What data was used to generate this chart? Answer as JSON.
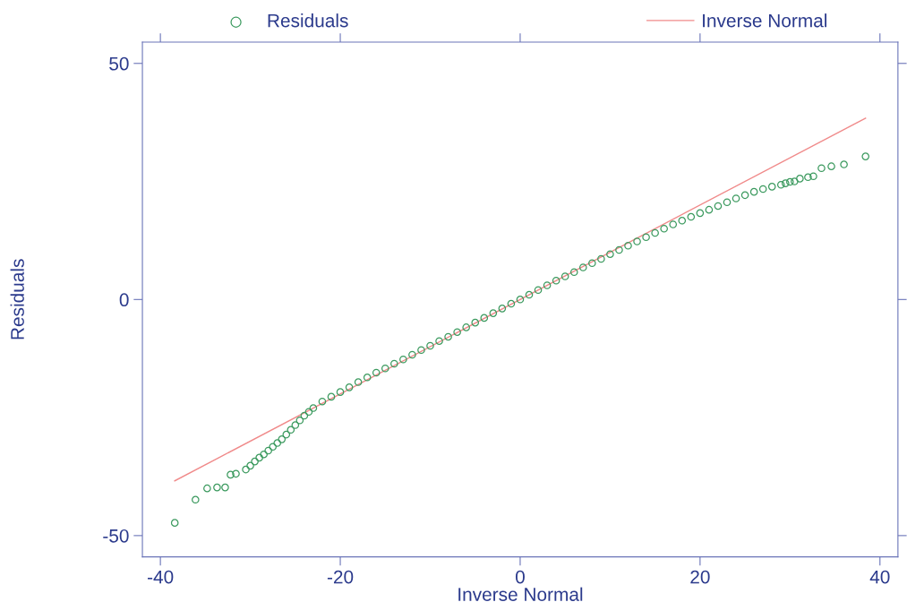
{
  "chart_data": {
    "type": "scatter",
    "xlabel": "Inverse Normal",
    "ylabel": "Residuals",
    "xlim": [
      -42,
      42
    ],
    "ylim": [
      -54.5,
      54.5
    ],
    "xticks": [
      -40,
      -20,
      0,
      20,
      40
    ],
    "yticks": [
      -50,
      0,
      50
    ],
    "grid": false,
    "legend": "top",
    "marker": "circle",
    "series": [
      {
        "name": "Residuals",
        "color": "#3c9a5f",
        "x": [
          -38.4,
          -36.1,
          -34.8,
          -33.7,
          -32.8,
          -32.2,
          -31.6,
          -30.5,
          -30,
          -29.5,
          -29,
          -28.5,
          -28,
          -27.5,
          -27,
          -26.5,
          -26,
          -25.5,
          -25,
          -24.5,
          -24,
          -23.5,
          -23,
          -22,
          -21,
          -20,
          -19,
          -18,
          -17,
          -16,
          -15,
          -14,
          -13,
          -12,
          -11,
          -10,
          -9,
          -8,
          -7,
          -6,
          -5,
          -4,
          -3,
          -2,
          -1,
          0,
          1,
          2,
          3,
          4,
          5,
          6,
          7,
          8,
          9,
          10,
          11,
          12,
          13,
          14,
          15,
          16,
          17,
          18,
          19,
          20,
          21,
          22,
          23,
          24,
          25,
          26,
          27,
          28,
          29,
          29.5,
          30,
          30.5,
          31.1,
          32,
          32.6,
          33.5,
          34.6,
          36,
          38.4
        ],
        "values": [
          -47.3,
          -42.4,
          -40,
          -39.8,
          -39.8,
          -37.1,
          -36.9,
          -36,
          -35.2,
          -34.3,
          -33.5,
          -32.8,
          -32,
          -31.2,
          -30.4,
          -29.6,
          -28.6,
          -27.6,
          -26.6,
          -25.6,
          -24.6,
          -23.8,
          -23,
          -21.6,
          -20.6,
          -19.6,
          -18.6,
          -17.5,
          -16.5,
          -15.5,
          -14.6,
          -13.6,
          -12.7,
          -11.7,
          -10.7,
          -9.8,
          -8.8,
          -7.9,
          -6.9,
          -5.9,
          -4.9,
          -3.9,
          -2.9,
          -1.9,
          -0.9,
          0,
          1,
          2,
          3,
          4,
          4.9,
          5.8,
          6.8,
          7.7,
          8.6,
          9.6,
          10.5,
          11.4,
          12.3,
          13.2,
          14.1,
          15,
          15.9,
          16.7,
          17.5,
          18.3,
          19,
          19.8,
          20.6,
          21.4,
          22.1,
          22.8,
          23.4,
          23.9,
          24.3,
          24.6,
          24.9,
          25,
          25.6,
          25.9,
          26.1,
          27.8,
          28.2,
          28.6,
          30.3
        ]
      },
      {
        "name": "Inverse Normal",
        "type": "line",
        "color": "#f08a8a",
        "marker": "none",
        "x": [
          -38.4,
          38.4
        ],
        "values": [
          -38.4,
          38.4
        ]
      }
    ]
  }
}
